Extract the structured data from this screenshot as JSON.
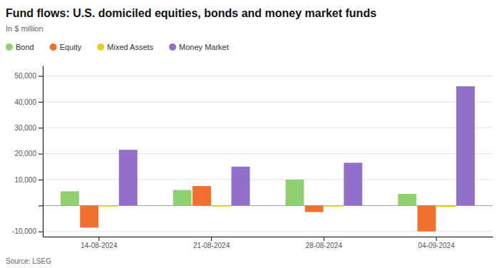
{
  "chart_data": {
    "type": "bar",
    "title": "Fund flows: U.S. domiciled equities, bonds and money market funds",
    "subtitle": "In $ million",
    "source": "Source: LSEG",
    "categories": [
      "14-08-2024",
      "21-08-2024",
      "28-08-2024",
      "04-09-2024"
    ],
    "series": [
      {
        "name": "Bond",
        "color": "#90d070",
        "values": [
          5500,
          6000,
          10000,
          4500
        ]
      },
      {
        "name": "Equity",
        "color": "#f07030",
        "values": [
          -8500,
          7500,
          -2500,
          -10000
        ]
      },
      {
        "name": "Mixed Assets",
        "color": "#e8d020",
        "values": [
          -400,
          -400,
          -400,
          -600
        ]
      },
      {
        "name": "Money Market",
        "color": "#9070c8",
        "values": [
          21500,
          15000,
          16500,
          46000
        ]
      }
    ],
    "ylim": [
      -12000,
      54000
    ],
    "yticks": [
      {
        "value": -10000,
        "label": "-10,000"
      },
      {
        "value": 0,
        "label": null
      },
      {
        "value": 10000,
        "label": "10,000"
      },
      {
        "value": 20000,
        "label": "20,000"
      },
      {
        "value": 30000,
        "label": "30,000"
      },
      {
        "value": 40000,
        "label": "40,000"
      },
      {
        "value": 50000,
        "label": "50,000"
      }
    ],
    "grid": true,
    "legend": "top-left"
  }
}
